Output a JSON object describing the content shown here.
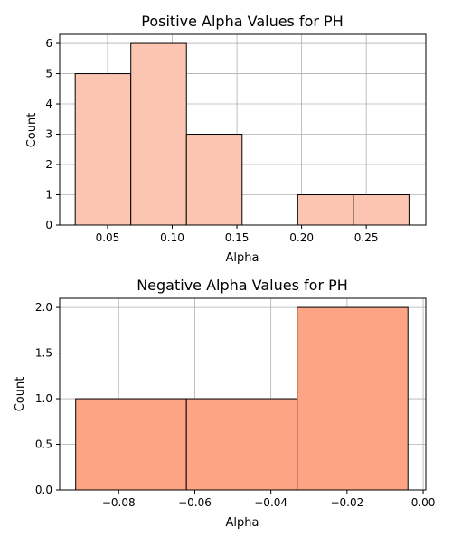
{
  "chart_data": [
    {
      "type": "bar",
      "title": "Positive Alpha Values for PH",
      "xlabel": "Alpha",
      "ylabel": "Count",
      "xlim": [
        0.013,
        0.296
      ],
      "ylim": [
        0,
        6.3
      ],
      "xticks": [
        0.05,
        0.1,
        0.15,
        0.2,
        0.25
      ],
      "xtick_labels": [
        "0.05",
        "0.10",
        "0.15",
        "0.20",
        "0.25"
      ],
      "yticks": [
        0,
        1,
        2,
        3,
        4,
        5,
        6
      ],
      "ytick_labels": [
        "0",
        "1",
        "2",
        "3",
        "4",
        "5",
        "6"
      ],
      "grid": true,
      "bar_color": "#fcc5b1",
      "bins": [
        {
          "left": 0.025,
          "right": 0.068,
          "count": 5
        },
        {
          "left": 0.068,
          "right": 0.111,
          "count": 6
        },
        {
          "left": 0.111,
          "right": 0.154,
          "count": 3
        },
        {
          "left": 0.154,
          "right": 0.197,
          "count": 0
        },
        {
          "left": 0.197,
          "right": 0.24,
          "count": 1
        },
        {
          "left": 0.24,
          "right": 0.283,
          "count": 1
        }
      ]
    },
    {
      "type": "bar",
      "title": "Negative Alpha Values for PH",
      "xlabel": "Alpha",
      "ylabel": "Count",
      "xlim": [
        -0.0955,
        0.0007
      ],
      "ylim": [
        0,
        2.1
      ],
      "xticks": [
        -0.08,
        -0.06,
        -0.04,
        -0.02,
        0.0
      ],
      "xtick_labels": [
        "−0.08",
        "−0.06",
        "−0.04",
        "−0.02",
        "0.00"
      ],
      "yticks": [
        0,
        0.5,
        1.0,
        1.5,
        2.0
      ],
      "ytick_labels": [
        "0.0",
        "0.5",
        "1.0",
        "1.5",
        "2.0"
      ],
      "grid": true,
      "bar_color": "#fca483",
      "bins": [
        {
          "left": -0.0913,
          "right": -0.0622,
          "count": 1
        },
        {
          "left": -0.0622,
          "right": -0.0331,
          "count": 1
        },
        {
          "left": -0.0331,
          "right": -0.004,
          "count": 2
        }
      ]
    }
  ]
}
